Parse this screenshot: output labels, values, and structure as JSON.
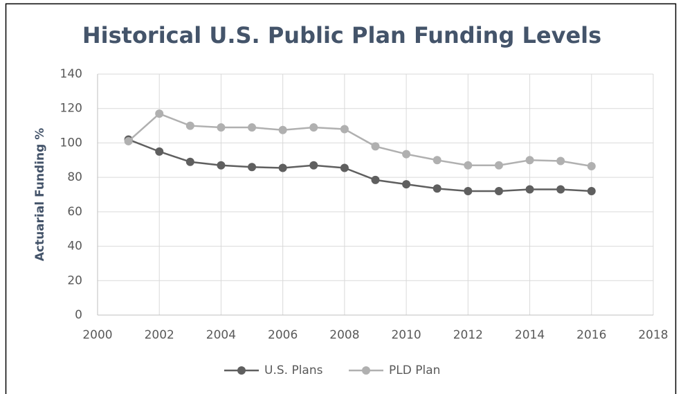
{
  "chart_data": {
    "type": "line",
    "title": "Historical U.S. Public Plan Funding Levels",
    "y_label": "Actuarial Funding %",
    "x": [
      2001,
      2002,
      2003,
      2004,
      2005,
      2006,
      2007,
      2008,
      2009,
      2010,
      2011,
      2012,
      2013,
      2014,
      2015,
      2016
    ],
    "series": [
      {
        "name": "U.S. Plans",
        "color": "#5f5f5f",
        "values": [
          102,
          95,
          89,
          87,
          86,
          85.5,
          87,
          85.5,
          78.5,
          76,
          73.5,
          72,
          72,
          73,
          73,
          72
        ]
      },
      {
        "name": "PLD Plan",
        "color": "#b0b0b0",
        "values": [
          101,
          117,
          110,
          109,
          109,
          107.5,
          109,
          108,
          98,
          93.5,
          90,
          87,
          87,
          90,
          89.5,
          86.5
        ]
      }
    ],
    "xlim": [
      2000,
      2018
    ],
    "xticks": [
      2000,
      2002,
      2004,
      2006,
      2008,
      2010,
      2012,
      2014,
      2016,
      2018
    ],
    "ylim": [
      0,
      140
    ],
    "yticks": [
      0,
      20,
      40,
      60,
      80,
      100,
      120,
      140
    ],
    "grid": true,
    "legend": "bottom"
  }
}
